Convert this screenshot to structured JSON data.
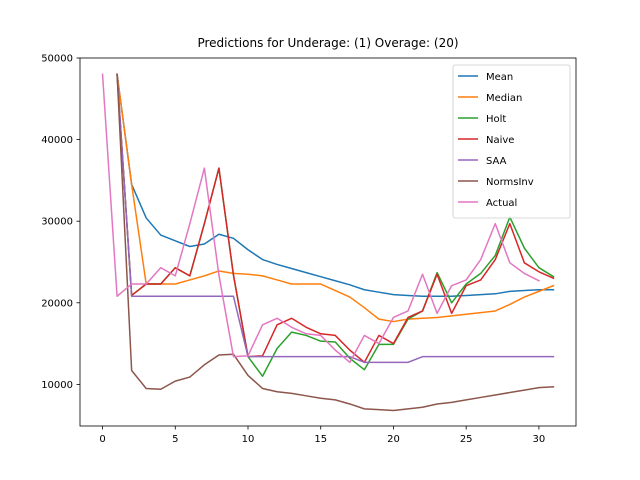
{
  "chart_data": {
    "type": "line",
    "title": "Predictions for Underage: (1) Overage: (20)",
    "xlabel": "",
    "ylabel": "",
    "xlim": [
      -1.55,
      32.55
    ],
    "ylim": [
      4900,
      50000
    ],
    "xticks": [
      0,
      5,
      10,
      15,
      20,
      25,
      30
    ],
    "yticks": [
      10000,
      20000,
      30000,
      40000,
      50000
    ],
    "legend_position": "top-right",
    "series": [
      {
        "name": "Mean",
        "color": "#1f77b4",
        "x_start": 1,
        "values": [
          48000,
          34500,
          30400,
          28300,
          27600,
          26900,
          27200,
          28400,
          27900,
          26500,
          25300,
          24700,
          24200,
          23700,
          23200,
          22700,
          22200,
          21600,
          21300,
          21000,
          20900,
          20800,
          20800,
          20800,
          20900,
          21000,
          21100,
          21400,
          21500,
          21600,
          21600
        ]
      },
      {
        "name": "Median",
        "color": "#ff7f0e",
        "x_start": 1,
        "values": [
          48000,
          34500,
          22300,
          22300,
          22300,
          22800,
          23300,
          23900,
          23600,
          23500,
          23300,
          22800,
          22300,
          22300,
          22300,
          21500,
          20700,
          19400,
          18000,
          17700,
          18000,
          18100,
          18200,
          18400,
          18600,
          18800,
          19000,
          19800,
          20700,
          21400,
          22100
        ]
      },
      {
        "name": "Holt",
        "color": "#2ca02c",
        "x_start": 1,
        "values": [
          48000,
          20900,
          22300,
          22300,
          24300,
          23300,
          29700,
          36500,
          23400,
          13400,
          11000,
          14400,
          16400,
          16000,
          15300,
          15200,
          13200,
          11800,
          14900,
          14900,
          18000,
          19000,
          23700,
          20000,
          22300,
          23600,
          25800,
          30500,
          26700,
          24300,
          23200
        ]
      },
      {
        "name": "Naive",
        "color": "#d62728",
        "x_start": 1,
        "values": [
          48000,
          20900,
          22300,
          22300,
          24300,
          23300,
          29700,
          36500,
          23400,
          13400,
          13500,
          17300,
          18100,
          17000,
          16200,
          16000,
          14200,
          12700,
          16000,
          15000,
          18200,
          19000,
          23500,
          18700,
          22100,
          22800,
          25300,
          29700,
          24900,
          23800,
          23000
        ]
      },
      {
        "name": "SAA",
        "color": "#9467bd",
        "x_start": 1,
        "values": [
          48000,
          20800,
          20800,
          20800,
          20800,
          20800,
          20800,
          20800,
          20800,
          13400,
          13400,
          13400,
          13400,
          13400,
          13400,
          13400,
          13400,
          12700,
          12700,
          12700,
          12700,
          13400,
          13400,
          13400,
          13400,
          13400,
          13400,
          13400,
          13400,
          13400,
          13400
        ]
      },
      {
        "name": "NormsInv",
        "color": "#8c564b",
        "x_start": 1,
        "values": [
          48000,
          11700,
          9500,
          9400,
          10400,
          10900,
          12400,
          13600,
          13700,
          11100,
          9500,
          9100,
          8900,
          8600,
          8300,
          8100,
          7600,
          7000,
          6900,
          6800,
          7000,
          7200,
          7600,
          7800,
          8100,
          8400,
          8700,
          9000,
          9300,
          9600,
          9700
        ]
      },
      {
        "name": "Actual",
        "color": "#e377c2",
        "x_start": 0,
        "values": [
          48000,
          20800,
          22300,
          22300,
          24300,
          23300,
          29700,
          36500,
          23400,
          13400,
          13500,
          17300,
          18100,
          17000,
          16200,
          16000,
          14200,
          12700,
          16000,
          15000,
          18200,
          19000,
          23500,
          18700,
          22100,
          22800,
          25300,
          29700,
          24900,
          23600,
          22700
        ]
      }
    ]
  }
}
